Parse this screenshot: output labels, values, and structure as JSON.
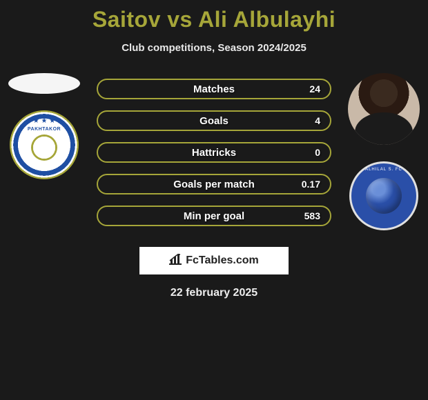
{
  "title": "Saitov vs Ali Albulayhi",
  "subtitle": "Club competitions, Season 2024/2025",
  "accent_color": "#a6a639",
  "bar_border_color": "#a6a639",
  "background_color": "#1a1a1a",
  "left_player": {
    "name": "Saitov",
    "avatar_kind": "placeholder-ellipse",
    "club_badge_name": "pakhtakor"
  },
  "right_player": {
    "name": "Ali Albulayhi",
    "avatar_kind": "photo",
    "club_badge_name": "alhilal"
  },
  "stats": [
    {
      "label": "Matches",
      "right_value": "24",
      "left_value": ""
    },
    {
      "label": "Goals",
      "right_value": "4",
      "left_value": ""
    },
    {
      "label": "Hattricks",
      "right_value": "0",
      "left_value": ""
    },
    {
      "label": "Goals per match",
      "right_value": "0.17",
      "left_value": ""
    },
    {
      "label": "Min per goal",
      "right_value": "583",
      "left_value": ""
    }
  ],
  "watermark_text": "FcTables.com",
  "date_text": "22 february 2025",
  "club_badges": {
    "pakhtakor": {
      "top_text": "PAKHTAKOR",
      "bottom_text": "UZBEKISTAN TASHKENT"
    },
    "alhilal": {
      "ring_text": "ALHILAL S. FC"
    }
  }
}
